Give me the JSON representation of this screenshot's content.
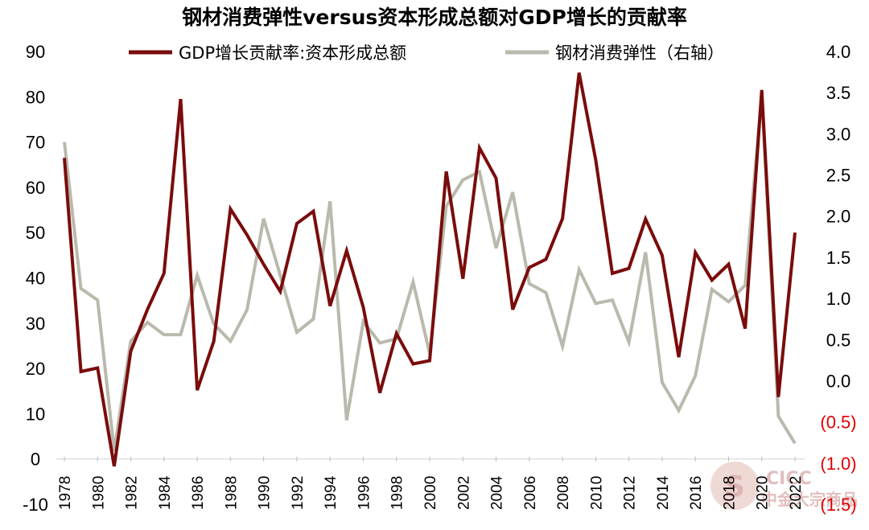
{
  "chart_data": {
    "type": "line",
    "title": "钢材消费弹性versus资本形成总额对GDP增长的贡献率",
    "x": [
      1978,
      1979,
      1980,
      1981,
      1982,
      1983,
      1984,
      1985,
      1986,
      1987,
      1988,
      1989,
      1990,
      1991,
      1992,
      1993,
      1994,
      1995,
      1996,
      1997,
      1998,
      1999,
      2000,
      2001,
      2002,
      2003,
      2004,
      2005,
      2006,
      2007,
      2008,
      2009,
      2010,
      2011,
      2012,
      2013,
      2014,
      2015,
      2016,
      2017,
      2018,
      2019,
      2020,
      2021,
      2022
    ],
    "x_tick_labels": [
      "1978",
      "1980",
      "1982",
      "1984",
      "1986",
      "1988",
      "1990",
      "1992",
      "1994",
      "1996",
      "1998",
      "2000",
      "2002",
      "2004",
      "2006",
      "2008",
      "2010",
      "2012",
      "2014",
      "2016",
      "2018",
      "2020",
      "2022"
    ],
    "y_left": {
      "lim": [
        -10,
        90
      ],
      "ticks": [
        "90",
        "80",
        "70",
        "60",
        "50",
        "40",
        "30",
        "20",
        "10",
        "0",
        "-10"
      ]
    },
    "y_right": {
      "lim": [
        -1.5,
        4.0
      ],
      "ticks": [
        "4.0",
        "3.5",
        "3.0",
        "2.5",
        "2.0",
        "1.5",
        "1.0",
        "0.5",
        "0.0",
        "(0.5)",
        "(1.0)",
        "(1.5)"
      ]
    },
    "series": [
      {
        "name": "GDP增长贡献率:资本形成总额",
        "axis": "left",
        "color": "#7a0c0c",
        "values": [
          66.5,
          19.3,
          20.1,
          -1.6,
          23.8,
          33,
          41,
          79.5,
          15.2,
          26,
          55.2,
          49.5,
          43,
          37,
          52,
          54.7,
          33.8,
          46,
          33.5,
          14.6,
          27.7,
          21,
          21.7,
          63.5,
          39.8,
          68.7,
          62,
          33,
          42.3,
          44.1,
          53.1,
          85.3,
          66,
          41,
          42.1,
          53,
          45,
          22.5,
          45.6,
          39.5,
          43,
          28.8,
          81.5,
          13.7,
          50
        ]
      },
      {
        "name": "钢材消费弹性（右轴）",
        "axis": "right",
        "color": "#b9b9ad",
        "values": [
          2.9,
          1.12,
          0.98,
          -0.85,
          0.48,
          0.71,
          0.56,
          0.56,
          1.28,
          0.69,
          0.48,
          0.86,
          1.97,
          1.28,
          0.59,
          0.75,
          2.18,
          -0.48,
          0.72,
          0.46,
          0.51,
          1.2,
          0.33,
          2.12,
          2.44,
          2.54,
          1.61,
          2.29,
          1.18,
          1.07,
          0.42,
          1.35,
          0.94,
          0.98,
          0.47,
          1.56,
          -0.02,
          -0.36,
          0.06,
          1.11,
          0.96,
          1.16,
          3.48,
          -0.43,
          -0.76
        ]
      }
    ],
    "legend": "top"
  },
  "watermark": {
    "mark": "S",
    "line1": "CICC",
    "line2": "中金大宗商品"
  }
}
